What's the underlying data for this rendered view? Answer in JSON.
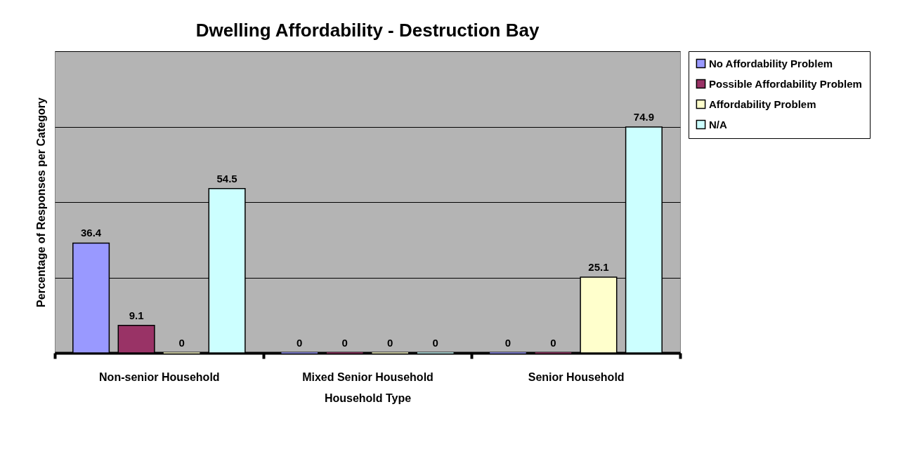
{
  "chart_data": {
    "type": "bar",
    "title": "Dwelling Affordability - Destruction Bay",
    "xlabel": "Household Type",
    "ylabel": "Percentage of Responses per Category",
    "categories": [
      "Non-senior  Household",
      "Mixed Senior Household",
      "Senior Household"
    ],
    "series": [
      {
        "name": "No Affordability Problem",
        "color": "#9999ff",
        "values": [
          36.4,
          0,
          0
        ]
      },
      {
        "name": "Possible Affordability Problem",
        "color": "#993366",
        "values": [
          9.1,
          0,
          0
        ]
      },
      {
        "name": "Affordability Problem",
        "color": "#ffffcc",
        "values": [
          0,
          0,
          25.1
        ]
      },
      {
        "name": "N/A",
        "color": "#ccffff",
        "values": [
          54.5,
          0,
          74.9
        ]
      }
    ],
    "ylim": [
      0,
      100
    ],
    "yticks": [
      {
        "value": 0,
        "label": null
      },
      {
        "value": 25,
        "label": null
      },
      {
        "value": 50,
        "label": null
      },
      {
        "value": 75,
        "label": null
      },
      {
        "value": 100,
        "label": null
      }
    ],
    "grid": "y",
    "tick_labels": "x",
    "data_labels": true,
    "legend": "right"
  }
}
